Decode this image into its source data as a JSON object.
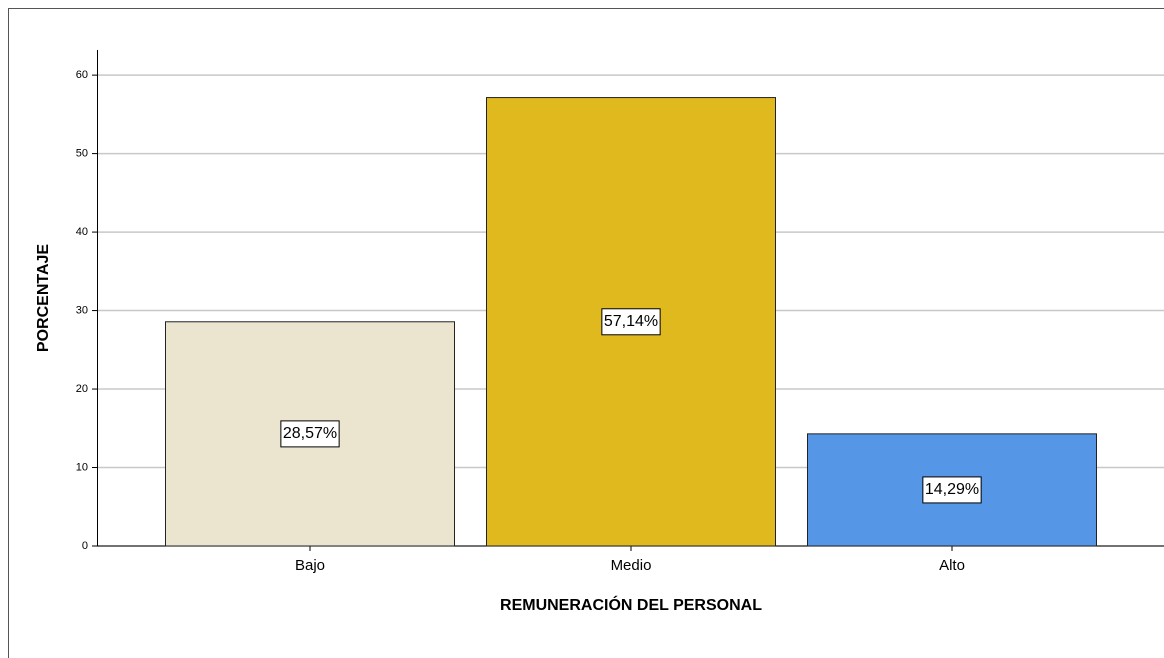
{
  "chart_data": {
    "type": "bar",
    "categories": [
      "Bajo",
      "Medio",
      "Alto"
    ],
    "values": [
      28.57,
      57.14,
      14.29
    ],
    "value_labels": [
      "28,57%",
      "57,14%",
      "14,29%"
    ],
    "colors": [
      "#ebe5d0",
      "#dfb91e",
      "#5596e6"
    ],
    "xlabel": "REMUNERACIÓN DEL PERSONAL",
    "ylabel": "PORCENTAJE",
    "ylim": [
      0,
      63.2
    ],
    "yticks": [
      0,
      10,
      20,
      30,
      40,
      50,
      60
    ],
    "grid": true
  }
}
